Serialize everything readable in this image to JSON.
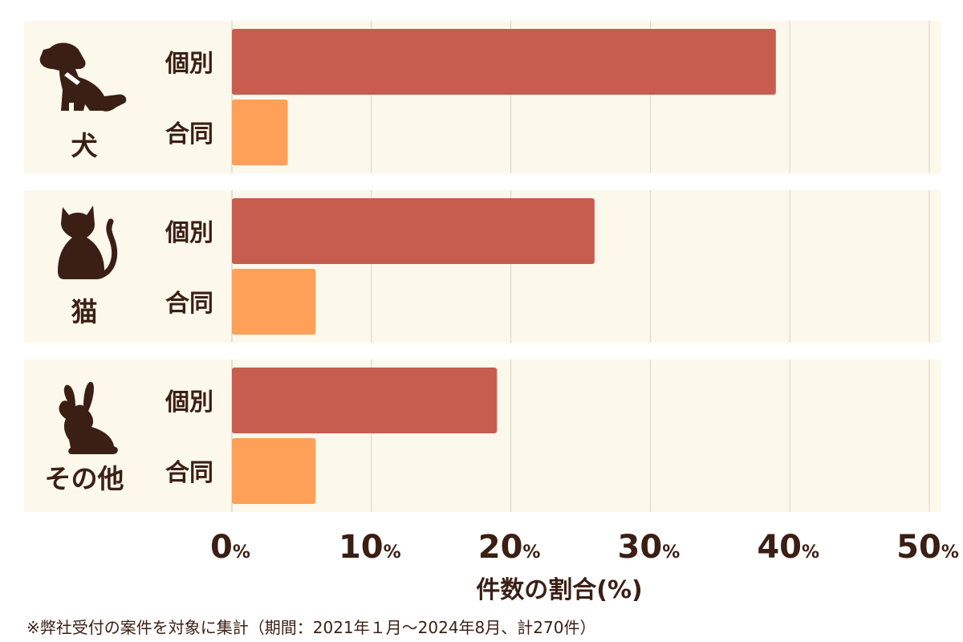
{
  "chart_data": {
    "type": "bar",
    "orientation": "horizontal",
    "categories": [
      "犬",
      "猫",
      "その他"
    ],
    "category_icons": [
      "dog-icon",
      "cat-icon",
      "rabbit-icon"
    ],
    "series": [
      {
        "name": "個別",
        "values": [
          39,
          26,
          19
        ]
      },
      {
        "name": "合同",
        "values": [
          4,
          6,
          6
        ]
      }
    ],
    "xlim": [
      0,
      50
    ],
    "xticks": [
      0,
      10,
      20,
      30,
      40,
      50
    ],
    "tick_suffix": "%",
    "xlabel": "件数の割合(%)",
    "grid": true,
    "legend": "none"
  },
  "colors": {
    "individual": "#c75d4f",
    "joint": "#fea058",
    "panel": "#fdf8ec",
    "grid": "#d9d3c6",
    "text": "#3b1f14"
  },
  "footnote": "※弊社受付の案件を対象に集計（期間：2021年１月〜2024年8月、計270件）"
}
